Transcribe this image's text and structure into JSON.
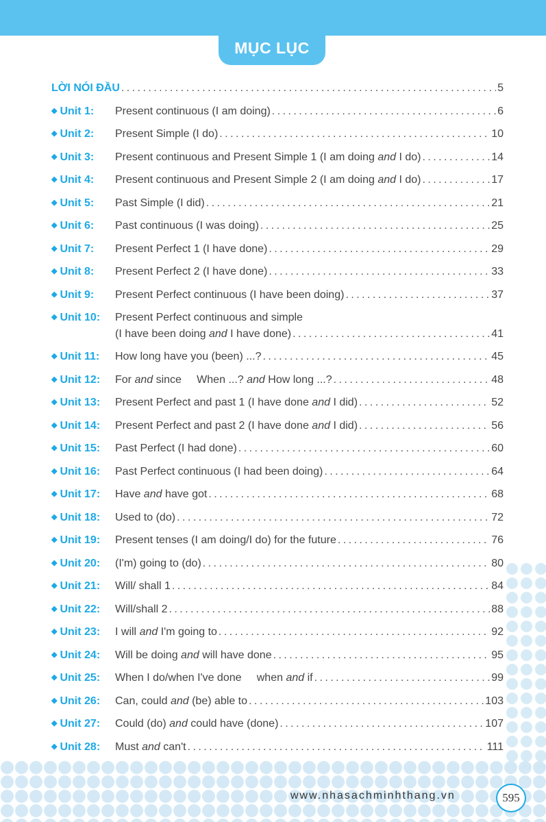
{
  "header": {
    "title": "MỤC LỤC",
    "accent": "#5bc2ef",
    "label_color": "#1ea9e6"
  },
  "preface": {
    "label": "LỜI NÓI ĐẦU",
    "page": "5"
  },
  "units": [
    {
      "label": "Unit 1:",
      "parts": [
        {
          "text": "Present continuous (I am doing)"
        }
      ],
      "page": "6"
    },
    {
      "label": "Unit 2:",
      "parts": [
        {
          "text": "Present Simple (I do)"
        }
      ],
      "page": "10"
    },
    {
      "label": "Unit 3:",
      "parts": [
        {
          "text": "Present continuous and Present Simple 1 (I am doing "
        },
        {
          "text": "and",
          "italic": true
        },
        {
          "text": " I do)"
        }
      ],
      "page": "14"
    },
    {
      "label": "Unit 4:",
      "parts": [
        {
          "text": "Present continuous and Present Simple 2 (I am doing "
        },
        {
          "text": "and",
          "italic": true
        },
        {
          "text": " I do)"
        }
      ],
      "page": "17"
    },
    {
      "label": "Unit 5:",
      "parts": [
        {
          "text": "Past Simple (I did)"
        }
      ],
      "page": "21"
    },
    {
      "label": "Unit 6:",
      "parts": [
        {
          "text": "Past continuous (I was doing)"
        }
      ],
      "page": "25"
    },
    {
      "label": "Unit 7:",
      "parts": [
        {
          "text": "Present Perfect 1 (I have done)"
        }
      ],
      "page": "29"
    },
    {
      "label": "Unit 8:",
      "parts": [
        {
          "text": "Present Perfect 2 (I have done)"
        }
      ],
      "page": "33"
    },
    {
      "label": "Unit 9:",
      "parts": [
        {
          "text": "Present Perfect continuous (I have been doing)"
        }
      ],
      "page": "37"
    },
    {
      "label": "Unit 10:",
      "first_line": "Present Perfect continuous and simple",
      "parts": [
        {
          "text": "(I have been doing "
        },
        {
          "text": "and",
          "italic": true
        },
        {
          "text": " I have done)"
        }
      ],
      "page": "41"
    },
    {
      "label": "Unit 11:",
      "parts": [
        {
          "text": "How long have you (been) ...?"
        }
      ],
      "page": "45"
    },
    {
      "label": "Unit 12:",
      "parts": [
        {
          "text": "For "
        },
        {
          "text": "and",
          "italic": true
        },
        {
          "text": " since     When ...? "
        },
        {
          "text": "and",
          "italic": true
        },
        {
          "text": " How long ...?"
        }
      ],
      "page": "48"
    },
    {
      "label": "Unit 13:",
      "parts": [
        {
          "text": "Present Perfect and past 1 (I have done "
        },
        {
          "text": "and",
          "italic": true
        },
        {
          "text": " I did)"
        }
      ],
      "page": "52"
    },
    {
      "label": "Unit 14:",
      "parts": [
        {
          "text": "Present Perfect and past 2 (I have done "
        },
        {
          "text": "and",
          "italic": true
        },
        {
          "text": " I did)"
        }
      ],
      "page": "56"
    },
    {
      "label": "Unit 15:",
      "parts": [
        {
          "text": "Past Perfect (I had done)"
        }
      ],
      "page": "60"
    },
    {
      "label": "Unit 16:",
      "parts": [
        {
          "text": "Past Perfect continuous (I had been doing)"
        }
      ],
      "page": "64"
    },
    {
      "label": "Unit 17:",
      "parts": [
        {
          "text": "Have "
        },
        {
          "text": "and",
          "italic": true
        },
        {
          "text": " have got"
        }
      ],
      "page": "68"
    },
    {
      "label": "Unit 18:",
      "parts": [
        {
          "text": "Used to (do)"
        }
      ],
      "page": "72"
    },
    {
      "label": "Unit 19:",
      "parts": [
        {
          "text": "Present tenses (I am doing/I do) for the future"
        }
      ],
      "page": "76"
    },
    {
      "label": "Unit 20:",
      "parts": [
        {
          "text": "(I'm) going to (do)"
        }
      ],
      "page": "80"
    },
    {
      "label": "Unit 21:",
      "parts": [
        {
          "text": "Will/ shall 1"
        }
      ],
      "page": "84"
    },
    {
      "label": "Unit 22:",
      "parts": [
        {
          "text": "Will/shall 2"
        }
      ],
      "page": "88"
    },
    {
      "label": "Unit 23:",
      "parts": [
        {
          "text": "I will "
        },
        {
          "text": "and",
          "italic": true
        },
        {
          "text": " I'm going to"
        }
      ],
      "page": "92"
    },
    {
      "label": "Unit 24:",
      "parts": [
        {
          "text": "Will be doing "
        },
        {
          "text": "and",
          "italic": true
        },
        {
          "text": " will have done"
        }
      ],
      "page": "95"
    },
    {
      "label": "Unit 25:",
      "parts": [
        {
          "text": "When I do/when I've done     when "
        },
        {
          "text": "and",
          "italic": true
        },
        {
          "text": " if"
        }
      ],
      "page": "99"
    },
    {
      "label": "Unit 26:",
      "parts": [
        {
          "text": "Can, could "
        },
        {
          "text": "and",
          "italic": true
        },
        {
          "text": " (be) able to"
        }
      ],
      "page": "103"
    },
    {
      "label": "Unit 27:",
      "parts": [
        {
          "text": "Could (do) "
        },
        {
          "text": "and",
          "italic": true
        },
        {
          "text": " could have (done)"
        }
      ],
      "page": "107"
    },
    {
      "label": "Unit 28:",
      "parts": [
        {
          "text": "Must "
        },
        {
          "text": "and",
          "italic": true
        },
        {
          "text": " can't"
        }
      ],
      "page": "111"
    }
  ],
  "footer": {
    "website": "www.nhasachminhthang.vn",
    "page_number": "595"
  }
}
